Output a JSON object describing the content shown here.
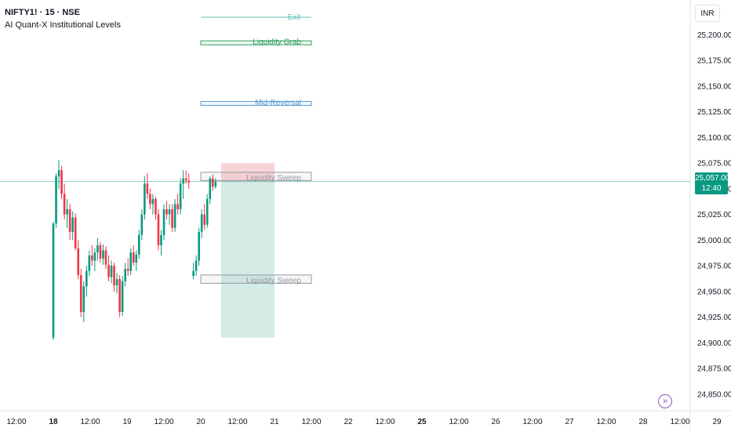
{
  "header": {
    "symbol": "NIFTY1! · 15 · NSE",
    "indicator": "AI Quant-X Institutional Levels"
  },
  "currency": "INR",
  "last_price": {
    "value": "25,057.00",
    "countdown": "12:40"
  },
  "colors": {
    "up": "#089981",
    "down": "#f23645",
    "exit_line": "#66c2b4",
    "grab_box": "#2e9f5f",
    "reversal_box": "#5b9bd5",
    "sweep_box": "#9598a1",
    "stop_zone": "#f7c5c8",
    "target_zone": "#cfe9e3",
    "axis_text": "#131722"
  },
  "icons": {
    "navigate": "double-chevron-right-icon"
  },
  "chart_data": {
    "type": "candlestick",
    "title": "NIFTY1! · 15 · NSE",
    "ylim": [
      24840,
      25225
    ],
    "y_ticks": [
      25200,
      25175,
      25150,
      25125,
      25100,
      25075,
      25050,
      25025,
      25000,
      24975,
      24950,
      24925,
      24900,
      24875,
      24850
    ],
    "y_tick_labels": [
      "25,200.00",
      "25,175.00",
      "25,150.00",
      "25,125.00",
      "25,100.00",
      "25,075.00",
      "25,050.00",
      "25,025.00",
      "25,000.00",
      "24,975.00",
      "24,950.00",
      "24,925.00",
      "24,900.00",
      "24,875.00",
      "24,850.00"
    ],
    "x_ticks": [
      {
        "label": "12:00",
        "bold": false,
        "x": 0
      },
      {
        "label": "18",
        "bold": true,
        "x": 2
      },
      {
        "label": "12:00",
        "bold": false,
        "x": 4
      },
      {
        "label": "19",
        "bold": false,
        "x": 6
      },
      {
        "label": "12:00",
        "bold": false,
        "x": 8
      },
      {
        "label": "20",
        "bold": false,
        "x": 10
      },
      {
        "label": "12:00",
        "bold": false,
        "x": 12
      },
      {
        "label": "21",
        "bold": false,
        "x": 14
      },
      {
        "label": "12:00",
        "bold": false,
        "x": 16
      },
      {
        "label": "22",
        "bold": false,
        "x": 18
      },
      {
        "label": "12:00",
        "bold": false,
        "x": 20
      },
      {
        "label": "25",
        "bold": true,
        "x": 22
      },
      {
        "label": "12:00",
        "bold": false,
        "x": 24
      },
      {
        "label": "26",
        "bold": false,
        "x": 26
      },
      {
        "label": "12:00",
        "bold": false,
        "x": 28
      },
      {
        "label": "27",
        "bold": false,
        "x": 30
      },
      {
        "label": "12:00",
        "bold": false,
        "x": 32
      },
      {
        "label": "28",
        "bold": false,
        "x": 34
      },
      {
        "label": "12:00",
        "bold": false,
        "x": 36
      },
      {
        "label": "29",
        "bold": false,
        "x": 38
      }
    ],
    "candles": [
      {
        "x": 2.0,
        "o": 24905,
        "h": 25018,
        "l": 24903,
        "c": 25016
      },
      {
        "x": 2.15,
        "o": 25016,
        "h": 25065,
        "l": 25012,
        "c": 25062
      },
      {
        "x": 2.3,
        "o": 25062,
        "h": 25078,
        "l": 25050,
        "c": 25068
      },
      {
        "x": 2.45,
        "o": 25068,
        "h": 25072,
        "l": 25040,
        "c": 25045
      },
      {
        "x": 2.6,
        "o": 25045,
        "h": 25055,
        "l": 25020,
        "c": 25025
      },
      {
        "x": 2.75,
        "o": 25025,
        "h": 25040,
        "l": 25012,
        "c": 25030
      },
      {
        "x": 2.9,
        "o": 25030,
        "h": 25035,
        "l": 25000,
        "c": 25008
      },
      {
        "x": 3.05,
        "o": 25008,
        "h": 25028,
        "l": 25000,
        "c": 25022
      },
      {
        "x": 3.2,
        "o": 25022,
        "h": 25026,
        "l": 24990,
        "c": 24992
      },
      {
        "x": 3.35,
        "o": 24992,
        "h": 25000,
        "l": 24962,
        "c": 24966
      },
      {
        "x": 3.5,
        "o": 24966,
        "h": 24972,
        "l": 24925,
        "c": 24930
      },
      {
        "x": 3.65,
        "o": 24930,
        "h": 24960,
        "l": 24920,
        "c": 24955
      },
      {
        "x": 3.8,
        "o": 24955,
        "h": 24975,
        "l": 24945,
        "c": 24970
      },
      {
        "x": 3.95,
        "o": 24970,
        "h": 24990,
        "l": 24965,
        "c": 24985
      },
      {
        "x": 4.1,
        "o": 24985,
        "h": 24995,
        "l": 24975,
        "c": 24980
      },
      {
        "x": 4.25,
        "o": 24980,
        "h": 24992,
        "l": 24970,
        "c": 24988
      },
      {
        "x": 4.4,
        "o": 24988,
        "h": 25002,
        "l": 24980,
        "c": 24995
      },
      {
        "x": 4.55,
        "o": 24995,
        "h": 24998,
        "l": 24978,
        "c": 24982
      },
      {
        "x": 4.7,
        "o": 24982,
        "h": 24996,
        "l": 24976,
        "c": 24990
      },
      {
        "x": 4.85,
        "o": 24990,
        "h": 24994,
        "l": 24972,
        "c": 24976
      },
      {
        "x": 5.0,
        "o": 24976,
        "h": 24985,
        "l": 24960,
        "c": 24964
      },
      {
        "x": 5.15,
        "o": 24964,
        "h": 24980,
        "l": 24958,
        "c": 24975
      },
      {
        "x": 5.3,
        "o": 24975,
        "h": 24978,
        "l": 24950,
        "c": 24956
      },
      {
        "x": 5.45,
        "o": 24956,
        "h": 24968,
        "l": 24948,
        "c": 24962
      },
      {
        "x": 5.6,
        "o": 24962,
        "h": 24966,
        "l": 24925,
        "c": 24930
      },
      {
        "x": 5.75,
        "o": 24930,
        "h": 24965,
        "l": 24926,
        "c": 24960
      },
      {
        "x": 5.9,
        "o": 24960,
        "h": 24978,
        "l": 24955,
        "c": 24972
      },
      {
        "x": 6.05,
        "o": 24972,
        "h": 24982,
        "l": 24965,
        "c": 24970
      },
      {
        "x": 6.2,
        "o": 24970,
        "h": 24992,
        "l": 24966,
        "c": 24988
      },
      {
        "x": 6.35,
        "o": 24988,
        "h": 24995,
        "l": 24975,
        "c": 24978
      },
      {
        "x": 6.5,
        "o": 24978,
        "h": 24990,
        "l": 24970,
        "c": 24986
      },
      {
        "x": 6.65,
        "o": 24986,
        "h": 25010,
        "l": 24982,
        "c": 25005
      },
      {
        "x": 6.8,
        "o": 25005,
        "h": 25030,
        "l": 25000,
        "c": 25025
      },
      {
        "x": 6.95,
        "o": 25025,
        "h": 25062,
        "l": 25020,
        "c": 25055
      },
      {
        "x": 7.1,
        "o": 25055,
        "h": 25065,
        "l": 25040,
        "c": 25045
      },
      {
        "x": 7.25,
        "o": 25045,
        "h": 25050,
        "l": 25030,
        "c": 25035
      },
      {
        "x": 7.4,
        "o": 25035,
        "h": 25045,
        "l": 25025,
        "c": 25040
      },
      {
        "x": 7.55,
        "o": 25040,
        "h": 25042,
        "l": 25020,
        "c": 25025
      },
      {
        "x": 7.7,
        "o": 25025,
        "h": 25030,
        "l": 24990,
        "c": 24995
      },
      {
        "x": 7.85,
        "o": 24995,
        "h": 25010,
        "l": 24985,
        "c": 25005
      },
      {
        "x": 8.0,
        "o": 25005,
        "h": 25035,
        "l": 25000,
        "c": 25030
      },
      {
        "x": 8.15,
        "o": 25030,
        "h": 25038,
        "l": 25020,
        "c": 25025
      },
      {
        "x": 8.3,
        "o": 25025,
        "h": 25035,
        "l": 25015,
        "c": 25030
      },
      {
        "x": 8.45,
        "o": 25030,
        "h": 25035,
        "l": 25008,
        "c": 25012
      },
      {
        "x": 8.6,
        "o": 25012,
        "h": 25040,
        "l": 25008,
        "c": 25035
      },
      {
        "x": 8.75,
        "o": 25035,
        "h": 25045,
        "l": 25025,
        "c": 25030
      },
      {
        "x": 8.9,
        "o": 25030,
        "h": 25060,
        "l": 25025,
        "c": 25055
      },
      {
        "x": 9.05,
        "o": 25055,
        "h": 25068,
        "l": 25040,
        "c": 25060
      },
      {
        "x": 9.2,
        "o": 25060,
        "h": 25068,
        "l": 25055,
        "c": 25058
      },
      {
        "x": 9.35,
        "o": 25058,
        "h": 25065,
        "l": 25050,
        "c": 25056
      },
      {
        "x": 9.6,
        "o": 24965,
        "h": 24978,
        "l": 24962,
        "c": 24970
      },
      {
        "x": 9.75,
        "o": 24970,
        "h": 24985,
        "l": 24965,
        "c": 24980
      },
      {
        "x": 9.9,
        "o": 24980,
        "h": 25012,
        "l": 24975,
        "c": 25008
      },
      {
        "x": 10.05,
        "o": 25008,
        "h": 25030,
        "l": 25002,
        "c": 25025
      },
      {
        "x": 10.2,
        "o": 25025,
        "h": 25035,
        "l": 25010,
        "c": 25015
      },
      {
        "x": 10.35,
        "o": 25015,
        "h": 25045,
        "l": 25012,
        "c": 25040
      },
      {
        "x": 10.5,
        "o": 25040,
        "h": 25062,
        "l": 25035,
        "c": 25060
      },
      {
        "x": 10.65,
        "o": 25060,
        "h": 25064,
        "l": 25048,
        "c": 25052
      },
      {
        "x": 10.8,
        "o": 25052,
        "h": 25060,
        "l": 25050,
        "c": 25057
      }
    ],
    "last_price": 25057,
    "levels": [
      {
        "label": "Exit",
        "kind": "line",
        "top": 25217,
        "bottom": 25217,
        "x_start": 10,
        "x_end": 16,
        "color": "#66c2b4"
      },
      {
        "label": "Liquidity Grab",
        "kind": "box",
        "top": 25194,
        "bottom": 25191,
        "x_start": 10,
        "x_end": 16,
        "color": "#2e9f5f"
      },
      {
        "label": "Mid-Reversal",
        "kind": "box",
        "top": 25135,
        "bottom": 25132,
        "x_start": 10,
        "x_end": 16,
        "color": "#5b9bd5"
      },
      {
        "label": "Liquidity Sweep",
        "kind": "box",
        "top": 25066,
        "bottom": 25058,
        "x_start": 10,
        "x_end": 16,
        "color": "#9598a1"
      },
      {
        "label": "Liquidity Sweep",
        "kind": "box",
        "top": 24966,
        "bottom": 24958,
        "x_start": 10,
        "x_end": 16,
        "color": "#9598a1"
      }
    ],
    "position": {
      "entry": 25057,
      "stop": 25075,
      "target": 24905,
      "x_start": 11.1,
      "x_end": 14.0
    },
    "grid": false
  }
}
